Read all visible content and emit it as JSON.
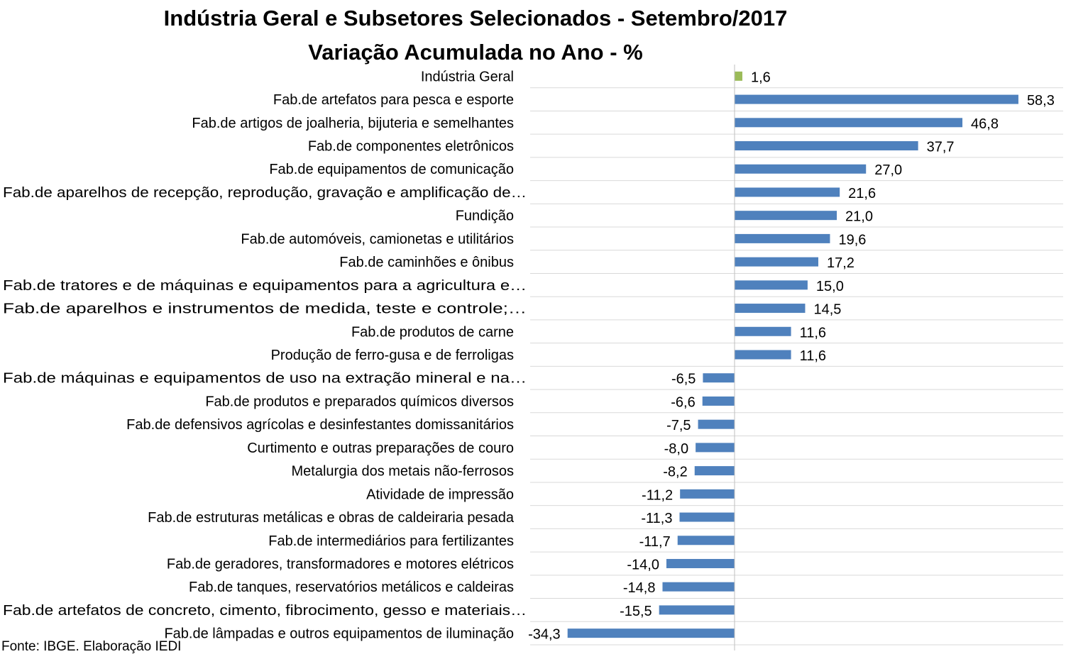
{
  "title": "Indústria Geral e Subsetores Selecionados - Setembro/2017",
  "subtitle": "Variação Acumulada no Ano - %",
  "source": "Fonte: IBGE. Elaboração IEDI",
  "colors": {
    "highlight": "#9BBB59",
    "bar": "#4F81BD",
    "grid": "#D9D9D9"
  },
  "chart_data": {
    "type": "bar",
    "orientation": "horizontal",
    "title": "Indústria Geral e Subsetores Selecionados - Setembro/2017",
    "subtitle": "Variação Acumulada no Ano - %",
    "grid": true,
    "categories": [
      "Indústria Geral",
      "Fab.de artefatos para pesca e esporte",
      "Fab.de artigos de joalheria, bijuteria e semelhantes",
      "Fab.de componentes eletrônicos",
      "Fab.de equipamentos de comunicação",
      "Fab.de aparelhos de recepção, reprodução, gravação e amplificação de…",
      "Fundição",
      "Fab.de automóveis, camionetas e utilitários",
      "Fab.de caminhões e ônibus",
      "Fab.de tratores e de máquinas e equipamentos para a agricultura e…",
      "Fab.de aparelhos e instrumentos de medida, teste e controle;…",
      "Fab.de produtos de carne",
      "Produção de ferro-gusa e de ferroligas",
      "Fab.de máquinas e equipamentos de uso na extração mineral e na…",
      "Fab.de produtos e preparados químicos diversos",
      "Fab.de defensivos agrícolas e desinfestantes domissanitários",
      "Curtimento e outras preparações de couro",
      "Metalurgia dos metais não-ferrosos",
      "Atividade de impressão",
      "Fab.de estruturas metálicas e obras de caldeiraria pesada",
      "Fab.de intermediários para fertilizantes",
      "Fab.de geradores, transformadores e motores elétricos",
      "Fab.de tanques, reservatórios metálicos e caldeiras",
      "Fab.de artefatos de concreto, cimento, fibrocimento, gesso e materiais…",
      "Fab.de lâmpadas e outros equipamentos de iluminação"
    ],
    "values": [
      1.6,
      58.3,
      46.8,
      37.7,
      27.0,
      21.6,
      21.0,
      19.6,
      17.2,
      15.0,
      14.5,
      11.6,
      11.6,
      -6.5,
      -6.6,
      -7.5,
      -8.0,
      -8.2,
      -11.2,
      -11.3,
      -11.7,
      -14.0,
      -14.8,
      -15.5,
      -34.3
    ],
    "labels": [
      "1,6",
      "58,3",
      "46,8",
      "37,7",
      "27,0",
      "21,6",
      "21,0",
      "19,6",
      "17,2",
      "15,0",
      "14,5",
      "11,6",
      "11,6",
      "-6,5",
      "-6,6",
      "-7,5",
      "-8,0",
      "-8,2",
      "-11,2",
      "-11,3",
      "-11,7",
      "-14,0",
      "-14,8",
      "-15,5",
      "-34,3"
    ],
    "highlight_index": 0
  }
}
